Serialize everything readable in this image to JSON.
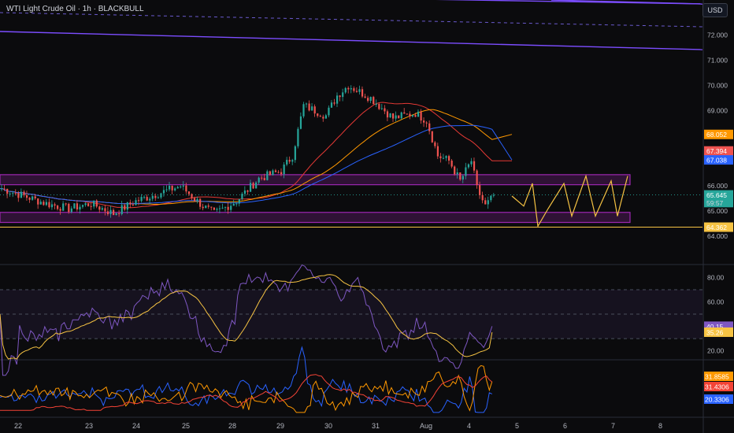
{
  "header": {
    "title": "WTI Light Crude Oil · 1h · BLACKBULL",
    "currency": "USD"
  },
  "colors": {
    "background": "#0b0b0d",
    "up": "#26a69a",
    "down": "#ef5350",
    "trendline": "#7c4dff",
    "zone": "#9c27b0",
    "projection": "#f6c343",
    "ma_red": "#e53935",
    "ma_orange": "#ff9800",
    "ma_blue": "#2962ff",
    "rsi": "#7e57c2",
    "rsi_ma": "#f6c343",
    "dmi_plus": "#2962ff",
    "dmi_minus": "#ff9800",
    "adx": "#f44336"
  },
  "price_axis": {
    "ticks": [
      "72.000",
      "71.000",
      "70.000",
      "69.000",
      "66.000",
      "65.000",
      "64.000"
    ],
    "labels": [
      {
        "text": "68.052",
        "color": "#ff9800",
        "price": 68.052
      },
      {
        "text": "67.394",
        "color": "#ef5350",
        "price": 67.394
      },
      {
        "text": "67.038",
        "color": "#2962ff",
        "price": 67.038
      },
      {
        "text": "65.645",
        "color": "#26a69a",
        "price": 65.645
      },
      {
        "text": "59:57",
        "color": "#26a69a",
        "price": 65.34
      },
      {
        "text": "64.362",
        "color": "#f6c343",
        "price": 64.362
      }
    ]
  },
  "rsi_axis": {
    "ticks": [
      "80.00",
      "60.00",
      "20.00"
    ],
    "labels": [
      {
        "text": "40.15",
        "color": "#7e57c2",
        "value": 40.15
      },
      {
        "text": "35.26",
        "color": "#f6c343",
        "value": 35.26
      }
    ]
  },
  "dmi_axis": {
    "labels": [
      {
        "text": "31.8585",
        "color": "#ff9800",
        "value": 31.8585
      },
      {
        "text": "31.4306",
        "color": "#f44336",
        "value": 31.4306
      },
      {
        "text": "20.3306",
        "color": "#2962ff",
        "value": 20.3306
      }
    ]
  },
  "time_axis": {
    "labels": [
      "22",
      "23",
      "24",
      "25",
      "28",
      "29",
      "30",
      "31",
      "Aug",
      "4",
      "5",
      "6",
      "7",
      "8"
    ]
  },
  "chart_data": {
    "type": "candlestick",
    "title": "WTI Light Crude Oil · 1h · BLACKBULL",
    "x_categories": [
      "22",
      "23",
      "24",
      "25",
      "28",
      "29",
      "30",
      "31",
      "Aug",
      "4",
      "5",
      "6",
      "7",
      "8"
    ],
    "ylim": [
      63.5,
      73.0
    ],
    "price_path": [
      [
        0,
        65.9
      ],
      [
        8,
        65.6
      ],
      [
        16,
        65.3
      ],
      [
        24,
        65.1
      ],
      [
        32,
        65.3
      ],
      [
        40,
        64.9
      ],
      [
        48,
        65.4
      ],
      [
        56,
        65.7
      ],
      [
        64,
        66.0
      ],
      [
        72,
        65.2
      ],
      [
        76,
        64.9
      ],
      [
        84,
        65.4
      ],
      [
        92,
        66.3
      ],
      [
        100,
        66.6
      ],
      [
        104,
        67.2
      ],
      [
        108,
        69.2
      ],
      [
        116,
        68.8
      ],
      [
        120,
        69.6
      ],
      [
        124,
        70.0
      ],
      [
        132,
        69.5
      ],
      [
        140,
        68.7
      ],
      [
        148,
        68.9
      ],
      [
        152,
        68.6
      ],
      [
        156,
        67.2
      ],
      [
        160,
        67.0
      ],
      [
        164,
        66.2
      ],
      [
        168,
        67.0
      ],
      [
        170,
        65.9
      ],
      [
        173,
        65.2
      ],
      [
        176,
        65.6
      ]
    ],
    "moving_averages": [
      {
        "name": "",
        "color": "#ff9800",
        "last": 68.052
      },
      {
        "name": "",
        "color": "#ef5350",
        "last": 67.394
      },
      {
        "name": "",
        "color": "#2962ff",
        "last": 67.038
      }
    ],
    "trend_channels": [
      {
        "from": [
          0,
          74.0
        ],
        "to": [
          240,
          71.2
        ]
      },
      {
        "from": [
          0,
          75.5
        ],
        "to": [
          240,
          72.0
        ]
      }
    ],
    "horizontal_zones": [
      {
        "low": 66.05,
        "high": 66.45
      },
      {
        "low": 64.55,
        "high": 64.95
      }
    ],
    "support_line": 64.362,
    "last_price": 65.645,
    "countdown": "59:57",
    "rsi": {
      "ylim": [
        15,
        90
      ],
      "last": 40.15,
      "ma_last": 35.26,
      "band": [
        30,
        70
      ]
    },
    "dmi": {
      "plus_last": 20.3306,
      "minus_last": 31.8585,
      "adx_last": 31.4306
    }
  }
}
